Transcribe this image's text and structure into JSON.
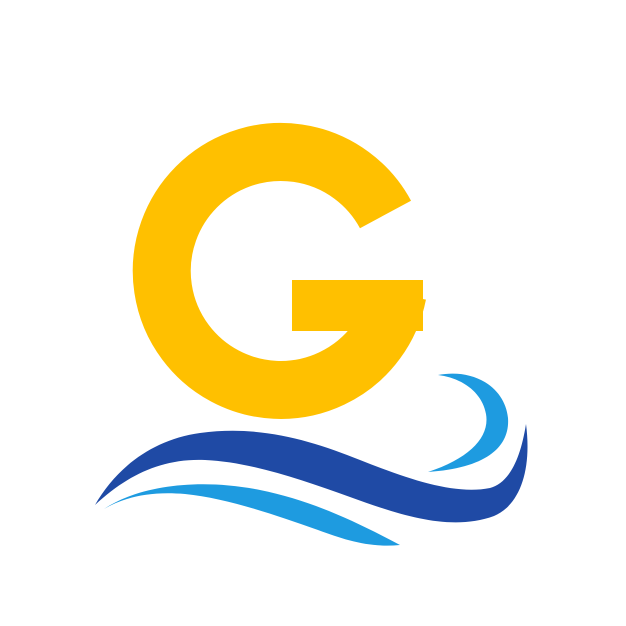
{
  "logo": {
    "letter": "G",
    "colors": {
      "background": "#ffffff",
      "letter": "#FFC000",
      "wave_dark": "#1F4AA5",
      "wave_light": "#1E9BE0"
    },
    "icon": "wave-icon"
  }
}
